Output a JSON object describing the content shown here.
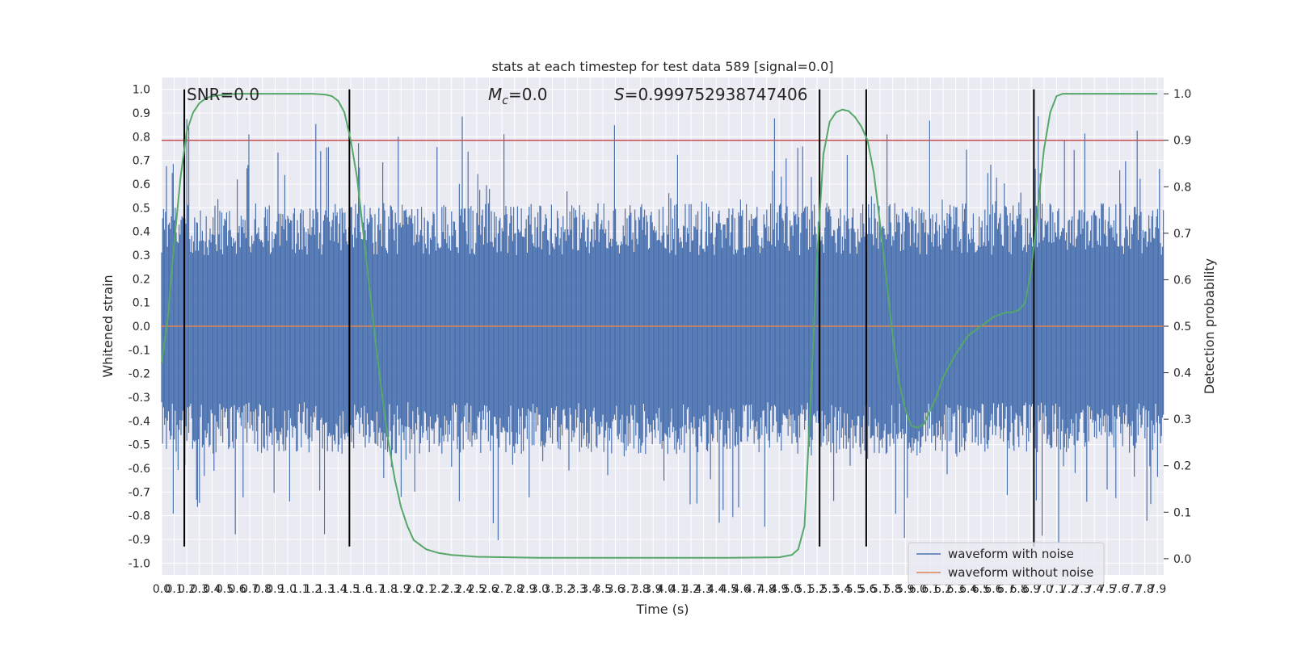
{
  "chart_data": {
    "type": "line",
    "title": "stats at each timestep for test data 589 [signal=0.0]",
    "xlabel": "Time (s)",
    "ylabel": "Whitened strain",
    "y2label": "Detection probability",
    "xlim": [
      0,
      7.95
    ],
    "ylim": [
      -1.05,
      1.05
    ],
    "y2lim": [
      -0.035,
      1.035
    ],
    "x_ticks": [
      "0.0",
      "0.1",
      "0.2",
      "0.3",
      "0.4",
      "0.5",
      "0.6",
      "0.7",
      "0.8",
      "0.9",
      "1.0",
      "1.1",
      "1.2",
      "1.3",
      "1.4",
      "1.5",
      "1.6",
      "1.7",
      "1.8",
      "1.9",
      "2.0",
      "2.1",
      "2.2",
      "2.3",
      "2.4",
      "2.5",
      "2.6",
      "2.7",
      "2.8",
      "2.9",
      "3.0",
      "3.1",
      "3.2",
      "3.3",
      "3.4",
      "3.5",
      "3.6",
      "3.7",
      "3.8",
      "3.9",
      "4.0",
      "4.1",
      "4.2",
      "4.3",
      "4.4",
      "4.5",
      "4.6",
      "4.7",
      "4.8",
      "4.9",
      "5.0",
      "5.1",
      "5.2",
      "5.3",
      "5.4",
      "5.5",
      "5.6",
      "5.7",
      "5.8",
      "5.9",
      "6.0",
      "6.1",
      "6.2",
      "6.3",
      "6.4",
      "6.5",
      "6.6",
      "6.7",
      "6.8",
      "6.9",
      "7.0",
      "7.1",
      "7.2",
      "7.3",
      "7.4",
      "7.5",
      "7.6",
      "7.7",
      "7.8",
      "7.9"
    ],
    "y_ticks": [
      "1.0",
      "0.9",
      "0.8",
      "0.7",
      "0.6",
      "0.5",
      "0.4",
      "0.3",
      "0.2",
      "0.1",
      "0.0",
      "-0.1",
      "-0.2",
      "-0.3",
      "-0.4",
      "-0.5",
      "-0.6",
      "-0.7",
      "-0.8",
      "-0.9",
      "-1.0"
    ],
    "y2_ticks": [
      "1.0",
      "0.9",
      "0.8",
      "0.7",
      "0.6",
      "0.5",
      "0.4",
      "0.3",
      "0.2",
      "0.1",
      "0.0"
    ],
    "annotations": {
      "snr": "SNR=0.0",
      "mc_symbol": "M",
      "mc_sub": "c",
      "mc_value": "=0.0",
      "s_symbol": "S",
      "s_value": "=0.999752938747406"
    },
    "threshold": 0.9,
    "vertical_lines": [
      0.18,
      1.49,
      5.22,
      5.59,
      6.92
    ],
    "detection_probability": {
      "x": [
        0.0,
        0.05,
        0.1,
        0.15,
        0.2,
        0.25,
        0.3,
        0.35,
        0.4,
        0.5,
        0.6,
        0.8,
        1.0,
        1.2,
        1.3,
        1.35,
        1.4,
        1.45,
        1.5,
        1.55,
        1.6,
        1.65,
        1.7,
        1.75,
        1.8,
        1.85,
        1.9,
        1.95,
        2.0,
        2.1,
        2.2,
        2.3,
        2.5,
        3.0,
        3.5,
        4.0,
        4.5,
        4.9,
        5.0,
        5.05,
        5.1,
        5.15,
        5.2,
        5.25,
        5.3,
        5.35,
        5.4,
        5.45,
        5.5,
        5.55,
        5.6,
        5.65,
        5.7,
        5.75,
        5.8,
        5.85,
        5.9,
        5.95,
        6.0,
        6.05,
        6.1,
        6.15,
        6.2,
        6.3,
        6.4,
        6.5,
        6.6,
        6.7,
        6.75,
        6.8,
        6.85,
        6.9,
        6.95,
        7.0,
        7.05,
        7.1,
        7.15,
        7.2,
        7.5,
        7.9
      ],
      "y": [
        0.42,
        0.52,
        0.68,
        0.82,
        0.92,
        0.96,
        0.98,
        0.99,
        0.995,
        0.998,
        1.0,
        1.0,
        1.0,
        1.0,
        0.998,
        0.995,
        0.985,
        0.96,
        0.9,
        0.82,
        0.7,
        0.58,
        0.46,
        0.35,
        0.25,
        0.17,
        0.11,
        0.07,
        0.04,
        0.02,
        0.012,
        0.008,
        0.004,
        0.002,
        0.002,
        0.002,
        0.002,
        0.003,
        0.008,
        0.02,
        0.07,
        0.35,
        0.65,
        0.87,
        0.94,
        0.96,
        0.966,
        0.963,
        0.95,
        0.93,
        0.9,
        0.83,
        0.72,
        0.6,
        0.48,
        0.38,
        0.32,
        0.285,
        0.282,
        0.29,
        0.32,
        0.35,
        0.39,
        0.44,
        0.48,
        0.5,
        0.52,
        0.53,
        0.53,
        0.535,
        0.55,
        0.62,
        0.75,
        0.88,
        0.96,
        0.995,
        1.0,
        1.0,
        1.0,
        1.0
      ]
    },
    "legend": {
      "position": "lower right",
      "entries": [
        "waveform with noise",
        "waveform without noise"
      ]
    },
    "colors": {
      "noise": "#4c72b0",
      "clean": "#dd8452",
      "probability": "#55a868",
      "threshold": "#c44e52",
      "vlines": "#000000",
      "plot_bg": "#eaeaf2",
      "grid": "#ffffff"
    },
    "grid": true
  }
}
